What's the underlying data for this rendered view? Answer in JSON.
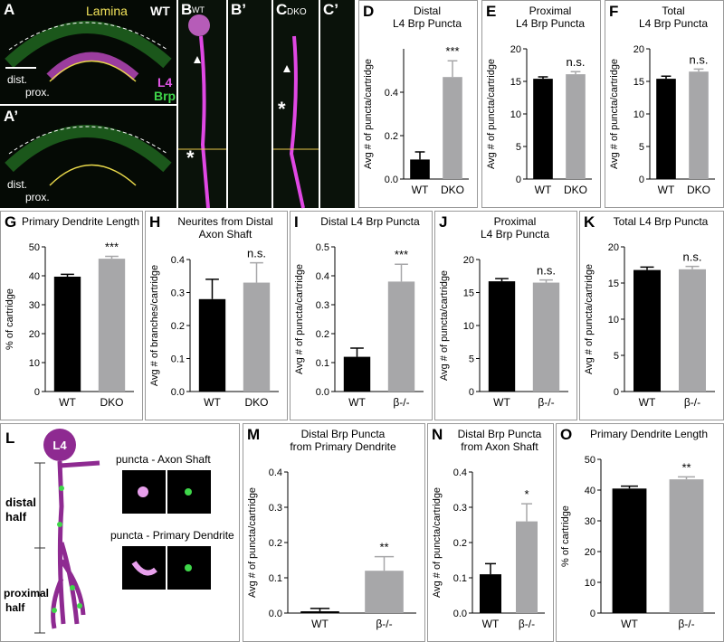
{
  "images": [
    {
      "letter": "A",
      "labels": [
        "Lamina",
        "WT",
        "L4",
        "Brp",
        "dist.",
        "prox."
      ]
    },
    {
      "letter": "A’",
      "labels": [
        "dist.",
        "prox."
      ]
    },
    {
      "letter": "B",
      "labels": [
        "WT",
        "*"
      ]
    },
    {
      "letter": "B’",
      "labels": []
    },
    {
      "letter": "C",
      "labels": [
        "DKO",
        "*"
      ]
    },
    {
      "letter": "C’",
      "labels": []
    }
  ],
  "diagram": {
    "letter": "L",
    "cell": "L4",
    "distal": [
      "distal",
      "half"
    ],
    "proximal": [
      "proximal",
      "half"
    ],
    "inset_axon": "puncta - Axon Shaft",
    "inset_dendrite": "puncta - Primary Dendrite"
  },
  "chart_data": [
    {
      "type": "bar",
      "panel": "D",
      "title": [
        "Distal",
        "L4 Brp Puncta"
      ],
      "ylabel": "Avg # of puncta/cartridge",
      "categories": [
        "WT",
        "DKO"
      ],
      "values": [
        0.09,
        0.47
      ],
      "errors": [
        0.035,
        0.075
      ],
      "colors": [
        "#000000",
        "#a7a7a9"
      ],
      "ylim": [
        0,
        0.6
      ],
      "yticks": [
        {
          "value": 0,
          "label": "0.0"
        },
        0.2,
        0.4
      ],
      "annotation": "***"
    },
    {
      "type": "bar",
      "panel": "E",
      "title": [
        "Proximal",
        "L4 Brp Puncta"
      ],
      "ylabel": "Avg # of puncta/cartridge",
      "categories": [
        "WT",
        "DKO"
      ],
      "values": [
        15.4,
        16.1
      ],
      "errors": [
        0.3,
        0.4
      ],
      "colors": [
        "#000000",
        "#a7a7a9"
      ],
      "ylim": [
        0,
        20
      ],
      "yticks": [
        0,
        5,
        10,
        15,
        20
      ],
      "annotation": "n.s."
    },
    {
      "type": "bar",
      "panel": "F",
      "title": [
        "Total",
        "L4 Brp Puncta"
      ],
      "ylabel": "Avg # of puncta/cartridge",
      "categories": [
        "WT",
        "DKO"
      ],
      "values": [
        15.4,
        16.5
      ],
      "errors": [
        0.4,
        0.4
      ],
      "colors": [
        "#000000",
        "#a7a7a9"
      ],
      "ylim": [
        0,
        20
      ],
      "yticks": [
        0,
        5,
        10,
        15,
        20
      ],
      "annotation": "n.s."
    },
    {
      "type": "bar",
      "panel": "G",
      "title": [
        "Primary Dendrite Length"
      ],
      "ylabel": "% of cartridge",
      "categories": [
        "WT",
        "DKO"
      ],
      "values": [
        39.7,
        45.9
      ],
      "errors": [
        0.8,
        0.8
      ],
      "colors": [
        "#000000",
        "#a7a7a9"
      ],
      "ylim": [
        0,
        50
      ],
      "yticks": [
        0,
        10,
        20,
        30,
        40,
        50
      ],
      "annotation": "***"
    },
    {
      "type": "bar",
      "panel": "H",
      "title": [
        "Neurites from Distal",
        "Axon Shaft"
      ],
      "ylabel": "Avg # of branches/cartridge",
      "categories": [
        "WT",
        "DKO"
      ],
      "values": [
        0.28,
        0.33
      ],
      "errors": [
        0.06,
        0.06
      ],
      "colors": [
        "#000000",
        "#a7a7a9"
      ],
      "ylim": [
        0,
        0.4
      ],
      "yticks": [
        {
          "value": 0,
          "label": "0.0"
        },
        0.1,
        0.2,
        0.3,
        0.4
      ],
      "annotation": "n.s."
    },
    {
      "type": "bar",
      "panel": "I",
      "title": [
        "Distal L4 Brp Puncta"
      ],
      "ylabel": "Avg # of puncta/cartridge",
      "categories": [
        "WT",
        "β-/-"
      ],
      "values": [
        0.12,
        0.38
      ],
      "errors": [
        0.03,
        0.06
      ],
      "colors": [
        "#000000",
        "#a7a7a9"
      ],
      "ylim": [
        0,
        0.5
      ],
      "yticks": [
        {
          "value": 0,
          "label": "0.0"
        },
        0.1,
        0.2,
        0.3,
        0.4,
        0.5
      ],
      "annotation": "***"
    },
    {
      "type": "bar",
      "panel": "J",
      "title": [
        "Proximal",
        "L4 Brp Puncta"
      ],
      "ylabel": "Avg # of puncta/cartridge",
      "categories": [
        "WT",
        "β-/-"
      ],
      "values": [
        16.7,
        16.5
      ],
      "errors": [
        0.4,
        0.4
      ],
      "colors": [
        "#000000",
        "#a7a7a9"
      ],
      "ylim": [
        0,
        20
      ],
      "yticks": [
        0,
        5,
        10,
        15,
        20
      ],
      "annotation": "n.s."
    },
    {
      "type": "bar",
      "panel": "K",
      "title": [
        "Total L4 Brp Puncta"
      ],
      "ylabel": "Avg # of puncta/cartridge",
      "categories": [
        "WT",
        "β-/-"
      ],
      "values": [
        16.8,
        16.9
      ],
      "errors": [
        0.4,
        0.4
      ],
      "colors": [
        "#000000",
        "#a7a7a9"
      ],
      "ylim": [
        0,
        20
      ],
      "yticks": [
        0,
        5,
        10,
        15,
        20
      ],
      "annotation": "n.s."
    },
    {
      "type": "bar",
      "panel": "M",
      "title": [
        "Distal Brp Puncta",
        "from Primary Dendrite"
      ],
      "ylabel": "Avg # of puncta/cartridge",
      "categories": [
        "WT",
        "β-/-"
      ],
      "values": [
        0.005,
        0.12
      ],
      "errors": [
        0.008,
        0.04
      ],
      "colors": [
        "#000000",
        "#a7a7a9"
      ],
      "ylim": [
        0,
        0.4
      ],
      "yticks": [
        {
          "value": 0,
          "label": "0.0"
        },
        0.1,
        0.2,
        0.3,
        0.4
      ],
      "annotation": "**"
    },
    {
      "type": "bar",
      "panel": "N",
      "title": [
        "Distal Brp Puncta",
        "from Axon Shaft"
      ],
      "ylabel": "Avg # of puncta/cartridge",
      "categories": [
        "WT",
        "β-/-"
      ],
      "values": [
        0.11,
        0.26
      ],
      "errors": [
        0.03,
        0.05
      ],
      "colors": [
        "#000000",
        "#a7a7a9"
      ],
      "ylim": [
        0,
        0.4
      ],
      "yticks": [
        {
          "value": 0,
          "label": "0.0"
        },
        0.1,
        0.2,
        0.3,
        0.4
      ],
      "annotation": "*"
    },
    {
      "type": "bar",
      "panel": "O",
      "title": [
        "Primary Dendrite Length"
      ],
      "ylabel": "% of cartridge",
      "categories": [
        "WT",
        "β-/-"
      ],
      "values": [
        40.5,
        43.5
      ],
      "errors": [
        0.8,
        0.8
      ],
      "colors": [
        "#000000",
        "#a7a7a9"
      ],
      "ylim": [
        0,
        50
      ],
      "yticks": [
        0,
        10,
        20,
        30,
        40,
        50
      ],
      "annotation": "**"
    }
  ]
}
